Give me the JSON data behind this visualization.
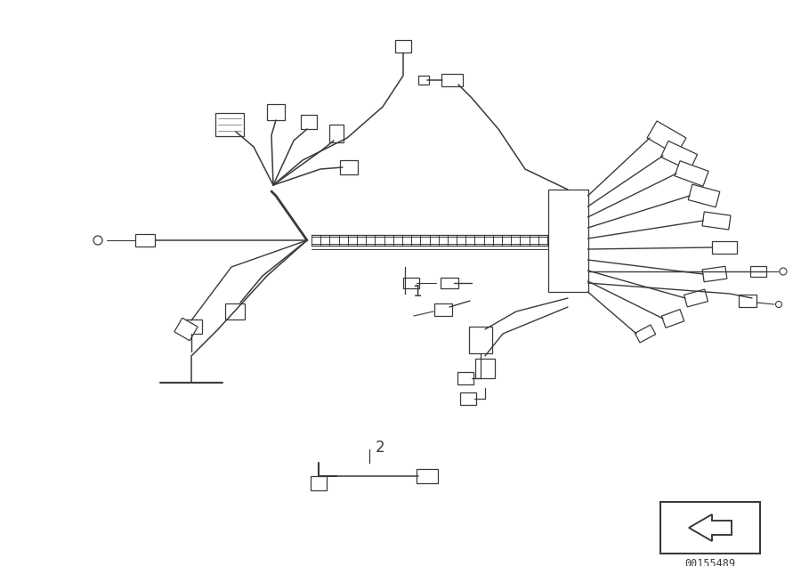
{
  "background_color": "#ffffff",
  "line_color": "#3a3a3a",
  "lw_main": 1.5,
  "lw_wire": 1.1,
  "part_number": "00155489",
  "figsize": [
    9.0,
    6.36
  ],
  "dpi": 100
}
